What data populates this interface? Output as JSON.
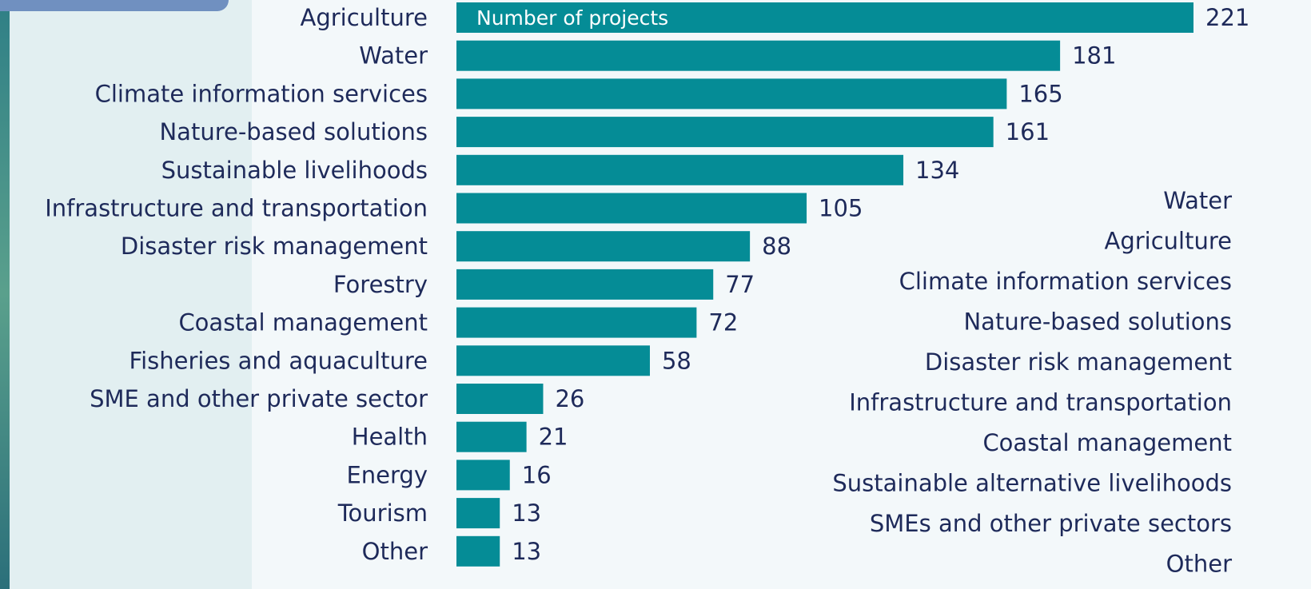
{
  "chart_data": {
    "type": "barh",
    "x_label": "Number of projects",
    "categories": [
      "Agriculture",
      "Water",
      "Climate information services",
      "Nature-based solutions",
      "Sustainable livelihoods",
      "Infrastructure and transportation",
      "Disaster risk management",
      "Forestry",
      "Coastal management",
      "Fisheries and aquaculture",
      "SME and other private sector",
      "Health",
      "Energy",
      "Tourism",
      "Other"
    ],
    "values": [
      221,
      181,
      165,
      161,
      134,
      105,
      88,
      77,
      72,
      58,
      26,
      21,
      16,
      13,
      13
    ],
    "color": "#058c96",
    "xlim": [
      0,
      221
    ]
  },
  "side_list": [
    "Water",
    "Agriculture",
    "Climate information services",
    "Nature-based solutions",
    "Disaster risk management",
    "Infrastructure and transportation",
    "Coastal management",
    "Sustainable alternative livelihoods",
    "SMEs and other private sectors",
    "Other"
  ]
}
